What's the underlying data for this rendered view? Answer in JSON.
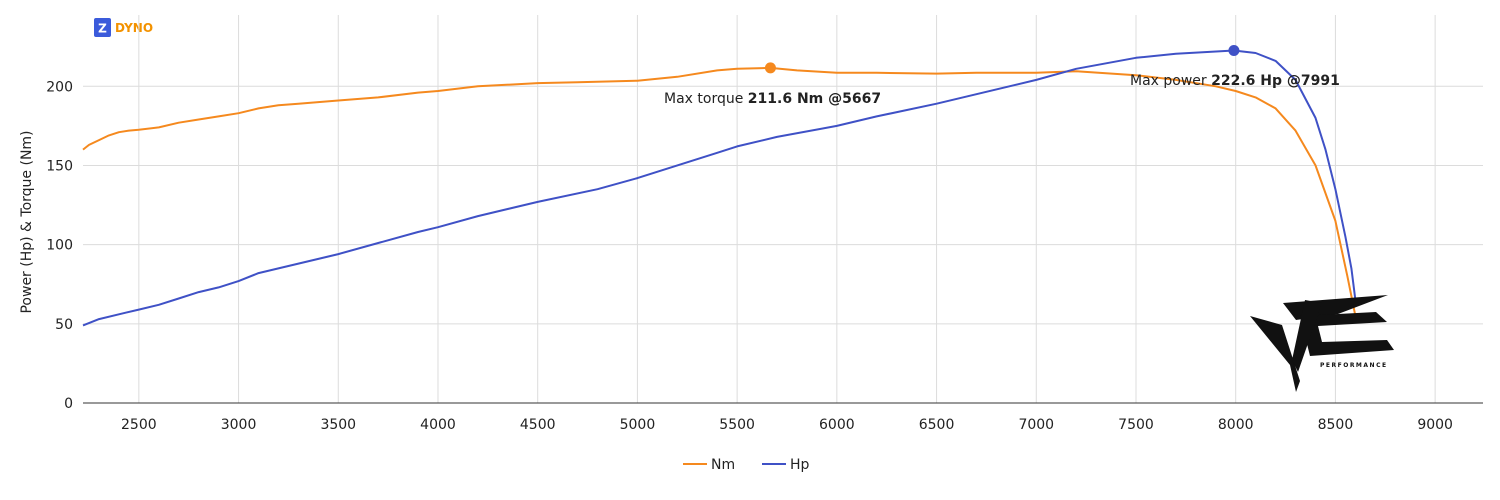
{
  "brand": {
    "logo_letter": "Z",
    "logo_text": "DYNO",
    "logo_color": "#f39200",
    "logo_badge_color": "#3b5bdb"
  },
  "watermark": {
    "text": "PERFORMANCE"
  },
  "chart_data": {
    "type": "line",
    "ylabel": "Power (Hp) & Torque (Nm)",
    "xlabel": "",
    "xlim": [
      2220,
      9240
    ],
    "ylim": [
      0,
      245
    ],
    "x_ticks": [
      2500,
      3000,
      3500,
      4000,
      4500,
      5000,
      5500,
      6000,
      6500,
      7000,
      7500,
      8000,
      8500,
      9000
    ],
    "y_ticks": [
      0,
      50,
      100,
      150,
      200
    ],
    "grid": true,
    "legend_position": "bottom-center",
    "series": [
      {
        "name": "Nm",
        "color": "#f5891e",
        "points": [
          [
            2220,
            160
          ],
          [
            2250,
            163
          ],
          [
            2300,
            166
          ],
          [
            2350,
            169
          ],
          [
            2400,
            171
          ],
          [
            2450,
            172
          ],
          [
            2500,
            172.5
          ],
          [
            2600,
            174
          ],
          [
            2700,
            177
          ],
          [
            2800,
            179
          ],
          [
            2900,
            181
          ],
          [
            3000,
            183
          ],
          [
            3100,
            186
          ],
          [
            3200,
            188
          ],
          [
            3300,
            189
          ],
          [
            3400,
            190
          ],
          [
            3500,
            191
          ],
          [
            3700,
            193
          ],
          [
            3900,
            196
          ],
          [
            4000,
            197
          ],
          [
            4200,
            200
          ],
          [
            4500,
            202
          ],
          [
            4700,
            202.5
          ],
          [
            5000,
            203.5
          ],
          [
            5200,
            206
          ],
          [
            5400,
            210
          ],
          [
            5500,
            211
          ],
          [
            5667,
            211.6
          ],
          [
            5800,
            210
          ],
          [
            6000,
            208.5
          ],
          [
            6200,
            208.5
          ],
          [
            6500,
            208
          ],
          [
            6700,
            208.5
          ],
          [
            7000,
            208.5
          ],
          [
            7200,
            209.5
          ],
          [
            7500,
            207
          ],
          [
            7700,
            204
          ],
          [
            7900,
            200
          ],
          [
            8000,
            197
          ],
          [
            8100,
            193
          ],
          [
            8200,
            186
          ],
          [
            8300,
            172
          ],
          [
            8400,
            150
          ],
          [
            8500,
            115
          ],
          [
            8560,
            80
          ],
          [
            8600,
            55
          ]
        ]
      },
      {
        "name": "Hp",
        "color": "#3f51c6",
        "points": [
          [
            2220,
            49
          ],
          [
            2300,
            53
          ],
          [
            2400,
            56
          ],
          [
            2500,
            59
          ],
          [
            2600,
            62
          ],
          [
            2700,
            66
          ],
          [
            2800,
            70
          ],
          [
            2900,
            73
          ],
          [
            3000,
            77
          ],
          [
            3100,
            82
          ],
          [
            3200,
            85
          ],
          [
            3300,
            88
          ],
          [
            3500,
            94
          ],
          [
            3700,
            101
          ],
          [
            3900,
            108
          ],
          [
            4000,
            111
          ],
          [
            4200,
            118
          ],
          [
            4500,
            127
          ],
          [
            4800,
            135
          ],
          [
            5000,
            142
          ],
          [
            5200,
            150
          ],
          [
            5400,
            158
          ],
          [
            5500,
            162
          ],
          [
            5700,
            168
          ],
          [
            6000,
            175
          ],
          [
            6200,
            181
          ],
          [
            6500,
            189
          ],
          [
            6700,
            195
          ],
          [
            7000,
            204
          ],
          [
            7200,
            211
          ],
          [
            7500,
            218
          ],
          [
            7700,
            220.5
          ],
          [
            7991,
            222.6
          ],
          [
            8100,
            221
          ],
          [
            8200,
            216
          ],
          [
            8300,
            204
          ],
          [
            8400,
            180
          ],
          [
            8450,
            160
          ],
          [
            8500,
            135
          ],
          [
            8550,
            105
          ],
          [
            8580,
            85
          ],
          [
            8600,
            65
          ]
        ]
      }
    ],
    "markers": [
      {
        "series": "Nm",
        "x": 5667,
        "y": 211.6
      },
      {
        "series": "Hp",
        "x": 7991,
        "y": 222.6
      }
    ],
    "annotations": [
      {
        "series": "Nm",
        "prefix": "Max torque ",
        "value": "211.6 Nm @5667"
      },
      {
        "series": "Hp",
        "prefix": "Max power ",
        "value": "222.6 Hp @7991"
      }
    ]
  }
}
